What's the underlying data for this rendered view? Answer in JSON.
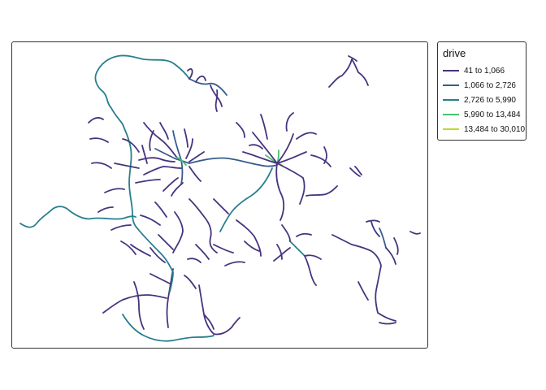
{
  "legend": {
    "title": "drive",
    "classes": [
      {
        "label": "41 to 1,066",
        "color": "#46337e"
      },
      {
        "label": "1,066 to 2,726",
        "color": "#365c8d"
      },
      {
        "label": "2,726 to 5,990",
        "color": "#277f8e"
      },
      {
        "label": "5,990 to 13,484",
        "color": "#4ac16d"
      },
      {
        "label": "13,484 to 30,010",
        "color": "#b8de29"
      }
    ]
  },
  "map": {
    "background": "#ffffff",
    "frame_color": "#333333"
  }
}
